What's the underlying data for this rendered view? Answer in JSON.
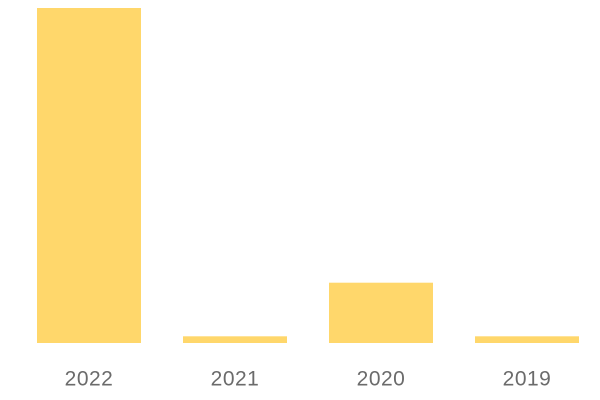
{
  "chart_data": {
    "type": "bar",
    "categories": [
      "2022",
      "2021",
      "2020",
      "2019"
    ],
    "values": [
      100,
      2,
      18,
      2
    ],
    "color": "#ffd76b"
  }
}
